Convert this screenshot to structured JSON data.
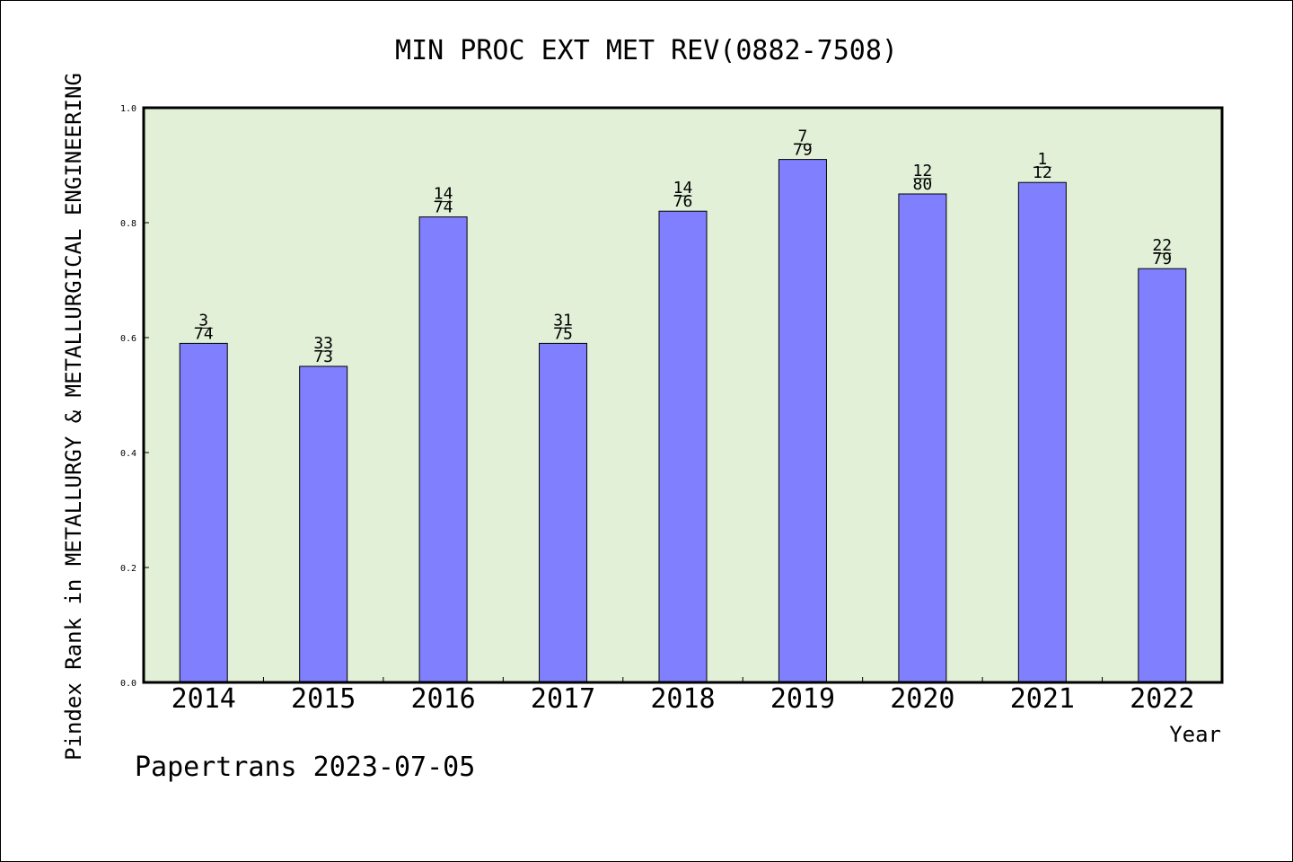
{
  "chart_data": {
    "type": "bar",
    "title": "MIN PROC EXT MET REV(0882-7508)",
    "ylabel": "Pindex Rank in METALLURGY & METALLURGICAL ENGINEERING",
    "xlabel": "Year",
    "categories": [
      "2014",
      "2015",
      "2016",
      "2017",
      "2018",
      "2019",
      "2020",
      "2021",
      "2022"
    ],
    "values": [
      0.59,
      0.55,
      0.81,
      0.59,
      0.82,
      0.91,
      0.85,
      0.87,
      0.72
    ],
    "rank": [
      "3",
      "33",
      "14",
      "31",
      "14",
      "7",
      "12",
      "1",
      "22"
    ],
    "total": [
      "74",
      "73",
      "74",
      "75",
      "76",
      "79",
      "80",
      "12",
      "79"
    ],
    "ylim": [
      0,
      1.0
    ],
    "yticks": [
      "0.0",
      "0.2",
      "0.4",
      "0.6",
      "0.8",
      "1.0"
    ],
    "grid": false,
    "plot_background": "#e2f0d8",
    "bar_color": "#8080ff",
    "footer": "Papertrans 2023-07-05"
  }
}
